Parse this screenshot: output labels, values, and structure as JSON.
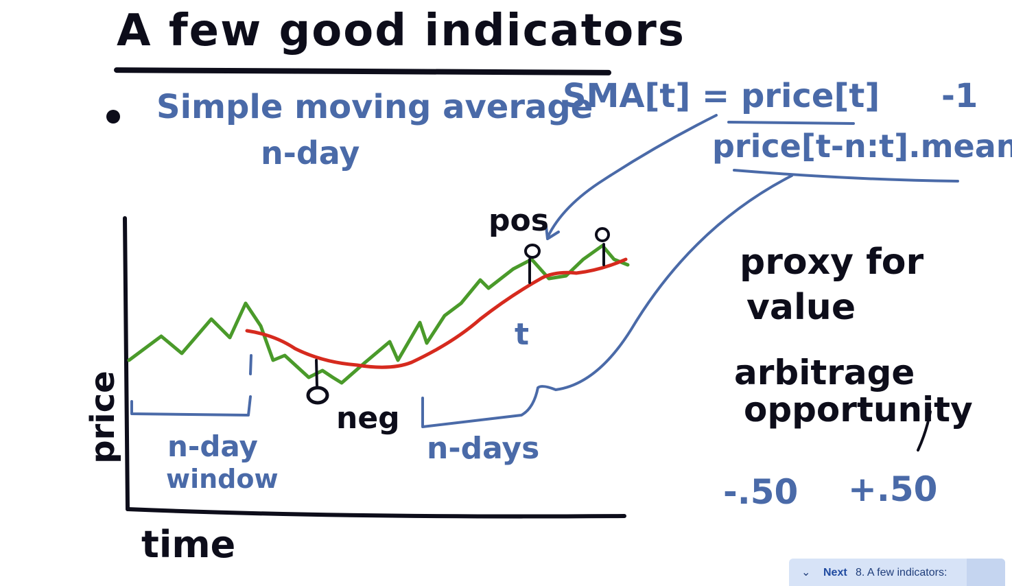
{
  "title": "A few good indicators",
  "bullet_item": "Simple moving average",
  "nday_note": "n-day",
  "formula": {
    "numerator": "SMA[t] = price[t]",
    "minus_one": "-1",
    "denominator": "price[t-n:t].mean()"
  },
  "labels": {
    "pos": "pos",
    "neg": "neg",
    "t": "t",
    "n_days": "n-days",
    "n_day_window_line1": "n-day",
    "n_day_window_line2": "window"
  },
  "axes": {
    "y": "price",
    "x": "time"
  },
  "notes": {
    "proxy_line1": "proxy for",
    "proxy_line2": "value",
    "arbitrage_line1": "arbitrage",
    "arbitrage_line2": "opportunity",
    "range_low": "-.50",
    "range_high": "+.50"
  },
  "colors": {
    "ink": "#0d0d1a",
    "blue": "#4a6aa8",
    "price_line": "#4a9a2a",
    "sma_line": "#d62a1e"
  },
  "next_bar": {
    "label": "Next",
    "title": "8. A few indicators:",
    "icon": "chevron-down-icon"
  }
}
